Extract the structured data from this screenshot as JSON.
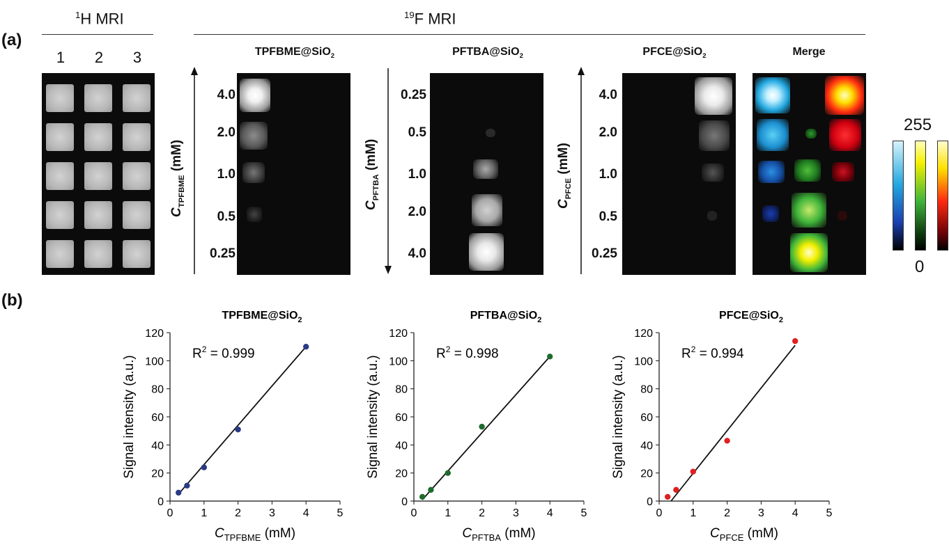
{
  "panel_a": {
    "label": "(a)",
    "h_header": {
      "sup": "1",
      "text": "H MRI"
    },
    "f_header": {
      "sup": "19",
      "text": "F MRI"
    },
    "columns": [
      "1",
      "2",
      "3"
    ],
    "panels": [
      {
        "name": "TPFBME",
        "title_main": "TPFBME@SiO",
        "title_sub": "2",
        "axis_c": "C",
        "axis_sub": "TPFBME",
        "axis_unit": " (mM)",
        "concentrations": [
          "4.0",
          "2.0",
          "1.0",
          "0.5",
          "0.25"
        ]
      },
      {
        "name": "PFTBA",
        "title_main": "PFTBA@SiO",
        "title_sub": "2",
        "axis_c": "C",
        "axis_sub": "PFTBA",
        "axis_unit": " (mM)",
        "concentrations": [
          "0.25",
          "0.5",
          "1.0",
          "2.0",
          "4.0"
        ]
      },
      {
        "name": "PFCE",
        "title_main": "PFCE@SiO",
        "title_sub": "2",
        "axis_c": "C",
        "axis_sub": "PFCE",
        "axis_unit": " (mM)",
        "concentrations": [
          "4.0",
          "2.0",
          "1.0",
          "0.5",
          "0.25"
        ]
      }
    ],
    "merge_title": "Merge",
    "colorbar": {
      "max": "255",
      "min": "0",
      "colors": [
        "#cfeff7",
        "#ffffb0",
        "#ffffcc"
      ]
    }
  },
  "panel_b": {
    "label": "(b)"
  },
  "chart_data": [
    {
      "type": "scatter",
      "title_main": "TPFBME@SiO",
      "title_sub": "2",
      "xlabel_c": "C",
      "xlabel_sub": "TPFBME",
      "xlabel_unit": " (mM)",
      "ylabel": "Signal intensity (a.u.)",
      "x": [
        0.25,
        0.5,
        1.0,
        2.0,
        4.0
      ],
      "y": [
        6,
        11,
        24,
        51,
        110
      ],
      "fit": {
        "x": [
          0.25,
          4.0
        ],
        "y": [
          5,
          110
        ]
      },
      "annotation": {
        "r2_label": "R",
        "r2_sup": "2",
        "r2_value": " = 0.999"
      },
      "xlim": [
        0,
        5
      ],
      "ylim": [
        0,
        120
      ],
      "xticks": [
        "0",
        "1",
        "2",
        "3",
        "4",
        "5"
      ],
      "yticks": [
        "0",
        "20",
        "40",
        "60",
        "80",
        "100",
        "120"
      ],
      "color": "#2b3a87"
    },
    {
      "type": "scatter",
      "title_main": "PFTBA@SiO",
      "title_sub": "2",
      "xlabel_c": "C",
      "xlabel_sub": "PFTBA",
      "xlabel_unit": " (mM)",
      "ylabel": "Signal intensity (a.u.)",
      "x": [
        0.25,
        0.5,
        1.0,
        2.0,
        4.0
      ],
      "y": [
        3,
        8,
        20,
        53,
        103
      ],
      "fit": {
        "x": [
          0.25,
          4.0
        ],
        "y": [
          1,
          103
        ]
      },
      "annotation": {
        "r2_label": "R",
        "r2_sup": "2",
        "r2_value": " = 0.998"
      },
      "xlim": [
        0,
        5
      ],
      "ylim": [
        0,
        120
      ],
      "xticks": [
        "0",
        "1",
        "2",
        "3",
        "4",
        "5"
      ],
      "yticks": [
        "0",
        "20",
        "40",
        "60",
        "80",
        "100",
        "120"
      ],
      "color": "#1e6b2e"
    },
    {
      "type": "scatter",
      "title_main": "PFCE@SiO",
      "title_sub": "2",
      "xlabel_c": "C",
      "xlabel_sub": "PFCE",
      "xlabel_unit": " (mM)",
      "ylabel": "Signal intensity (a.u.)",
      "x": [
        0.25,
        0.5,
        1.0,
        2.0,
        4.0
      ],
      "y": [
        3,
        8,
        21,
        43,
        114
      ],
      "fit": {
        "x": [
          0.35,
          4.0
        ],
        "y": [
          0,
          111
        ]
      },
      "annotation": {
        "r2_label": "R",
        "r2_sup": "2",
        "r2_value": " = 0.994"
      },
      "xlim": [
        0,
        5
      ],
      "ylim": [
        0,
        120
      ],
      "xticks": [
        "0",
        "1",
        "2",
        "3",
        "4",
        "5"
      ],
      "yticks": [
        "0",
        "20",
        "40",
        "60",
        "80",
        "100",
        "120"
      ],
      "color": "#e02020"
    }
  ]
}
